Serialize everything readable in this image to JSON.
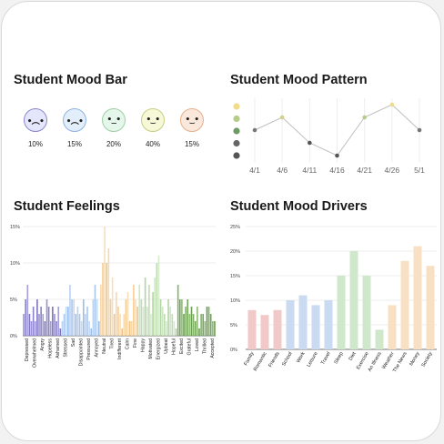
{
  "mood_bar": {
    "title": "Student Mood Bar",
    "faces": [
      {
        "glyph": "•︵•",
        "percent": "10%",
        "fill": "#e4e6fb",
        "stroke": "#8c86cf"
      },
      {
        "glyph": "•︵•",
        "percent": "15%",
        "fill": "#e3eefb",
        "stroke": "#8fb3e3"
      },
      {
        "glyph": "•_•",
        "percent": "20%",
        "fill": "#e5f6ea",
        "stroke": "#9fcfa6"
      },
      {
        "glyph": "•‿•",
        "percent": "40%",
        "fill": "#f6f8d8",
        "stroke": "#c6cf83"
      },
      {
        "glyph": "•‿•",
        "percent": "15%",
        "fill": "#fbe8dc",
        "stroke": "#e5b08c"
      }
    ]
  },
  "mood_pattern": {
    "title": "Student Mood Pattern"
  },
  "feelings": {
    "title": "Student Feelings"
  },
  "drivers": {
    "title": "Student Mood Drivers"
  },
  "chart_data": [
    {
      "type": "line",
      "title": "Student Mood Pattern",
      "x": [
        "4/1",
        "4/6",
        "4/11",
        "4/16",
        "4/21",
        "4/26",
        "5/1"
      ],
      "values": [
        3,
        4,
        2,
        1,
        4,
        5,
        3
      ],
      "ylim": [
        0.5,
        5.5
      ],
      "legend_colors": [
        "#f0dc8a",
        "#b5cc8a",
        "#6f9a63",
        "#666666",
        "#555555"
      ],
      "point_colors": [
        "#777777",
        "#d4cf8a",
        "#555555",
        "#555555",
        "#b5cc8a",
        "#f0dc8a",
        "#777777"
      ],
      "line_color": "#c0c0c0",
      "grid": true
    },
    {
      "type": "bar",
      "title": "Student Feelings",
      "ylim": [
        0,
        15
      ],
      "yticks": [
        "0%",
        "5%",
        "10%",
        "15%"
      ],
      "grid": true,
      "groups": [
        {
          "name": "Depressed",
          "values": [
            3,
            5,
            7,
            3
          ]
        },
        {
          "name": "Overwhelmed",
          "values": [
            2,
            4,
            2,
            5
          ]
        },
        {
          "name": "Angry",
          "values": [
            3,
            4,
            3,
            2
          ]
        },
        {
          "name": "Hopeless",
          "values": [
            5,
            4,
            2,
            4
          ]
        },
        {
          "name": "Ashamed",
          "values": [
            3,
            2,
            4,
            1
          ]
        },
        {
          "name": "Stressed",
          "values": [
            2,
            3,
            4,
            4
          ]
        },
        {
          "name": "Sad",
          "values": [
            7,
            5,
            5,
            3
          ]
        },
        {
          "name": "Disappointed",
          "values": [
            4,
            3,
            2,
            5
          ]
        },
        {
          "name": "Pressured",
          "values": [
            3,
            4,
            2,
            1
          ]
        },
        {
          "name": "Annoyed",
          "values": [
            5,
            7,
            5,
            2
          ]
        },
        {
          "name": "Neutral",
          "values": [
            7,
            10,
            15,
            10
          ]
        },
        {
          "name": "Tired",
          "values": [
            12,
            5,
            8,
            3
          ]
        },
        {
          "name": "Indifferent",
          "values": [
            6,
            4,
            3,
            1
          ]
        },
        {
          "name": "Calm",
          "values": [
            3,
            5,
            6,
            2
          ]
        },
        {
          "name": "Fine",
          "values": [
            2,
            7,
            5,
            4
          ]
        },
        {
          "name": "Happy",
          "values": [
            7,
            5,
            4,
            8
          ]
        },
        {
          "name": "Motivated",
          "values": [
            4,
            7,
            3,
            6
          ]
        },
        {
          "name": "Energized",
          "values": [
            8,
            10,
            11,
            5
          ]
        },
        {
          "name": "Upbeat",
          "values": [
            4,
            3,
            2,
            5
          ]
        },
        {
          "name": "Hopeful",
          "values": [
            4,
            3,
            2,
            1
          ]
        },
        {
          "name": "Excited",
          "values": [
            7,
            5,
            5,
            3
          ]
        },
        {
          "name": "Grateful",
          "values": [
            4,
            5,
            3,
            4
          ]
        },
        {
          "name": "Loved",
          "values": [
            3,
            2,
            4,
            1
          ]
        },
        {
          "name": "Thrilled",
          "values": [
            3,
            3,
            2,
            4
          ]
        },
        {
          "name": "Accepted",
          "values": [
            4,
            3,
            2,
            2
          ]
        }
      ]
    },
    {
      "type": "bar",
      "title": "Student Mood Drivers",
      "ylim": [
        0,
        25
      ],
      "yticks": [
        "0%",
        "5%",
        "10%",
        "15%",
        "20%",
        "25%"
      ],
      "grid": true,
      "categories": [
        "Family",
        "Romantic",
        "Friends",
        "School",
        "Work",
        "Leisure",
        "Travel",
        "Sleep",
        "Diet",
        "Exercise",
        "An Illness",
        "Weather",
        "The News",
        "Money",
        "Society"
      ],
      "values": [
        8,
        7,
        8,
        10,
        11,
        9,
        10,
        15,
        20,
        15,
        4,
        9,
        18,
        21,
        17
      ],
      "colors": [
        "#f1c9c9",
        "#f1c9c9",
        "#f1c9c9",
        "#c9daf1",
        "#c9daf1",
        "#c9daf1",
        "#c9daf1",
        "#cfe8cc",
        "#cfe8cc",
        "#cfe8cc",
        "#cfe8cc",
        "#f8e0c4",
        "#f8e0c4",
        "#f8e0c4",
        "#f8e0c4"
      ]
    }
  ]
}
